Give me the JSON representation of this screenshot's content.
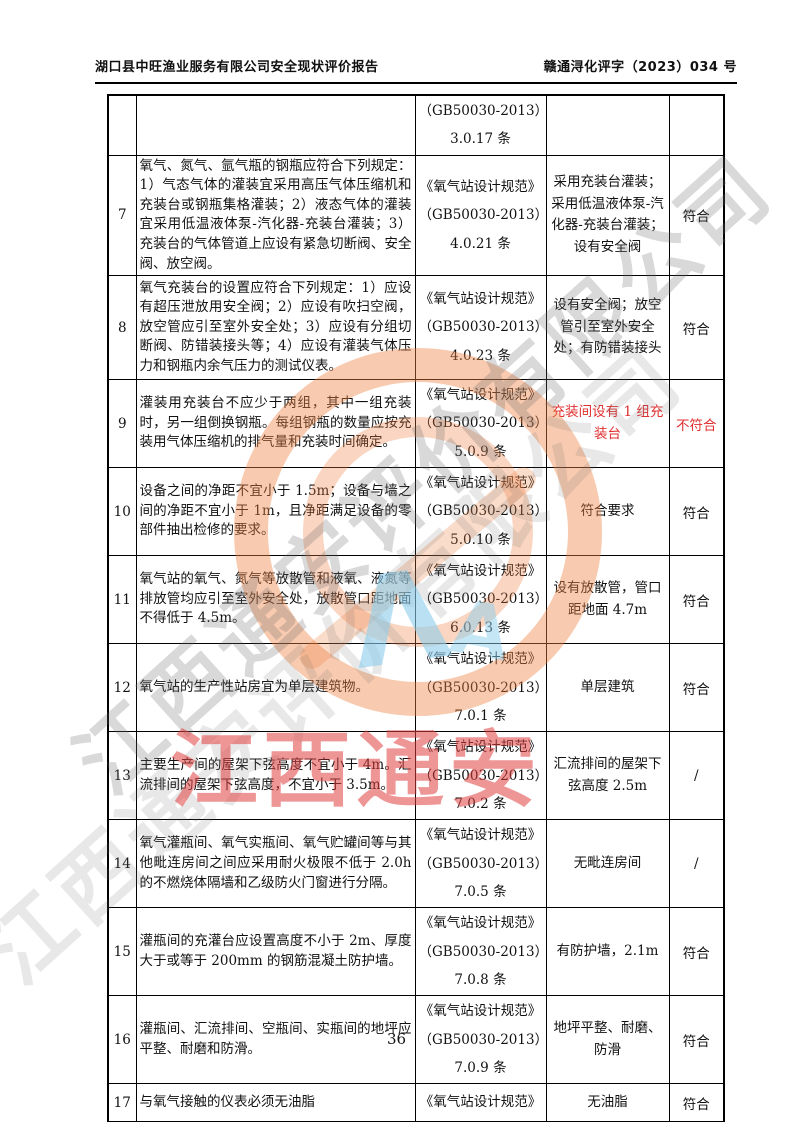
{
  "page": {
    "title_left": "湖口县中旺渔业服务有限公司安全现状评价报告",
    "title_right": "赣通浔化评字（2023）034 号",
    "page_number": "36"
  },
  "watermark": {
    "red_text": "江西通安",
    "gray_text": "江西通安评价有限公司",
    "blue_glyph1": "Λ",
    "blue_glyph2": "A",
    "colors": {
      "stamp_orange": "#EE8040",
      "red": "#E04040",
      "gray": "#6E6E6E",
      "blue": "#8CCDEB",
      "highlight_red": "#E03030"
    }
  },
  "table": {
    "rows": [
      {
        "no": "",
        "content": "",
        "standard": [
          "（GB50030-2013）",
          "3.0.17 条"
        ],
        "actual": "",
        "conclusion": "",
        "status": "none"
      },
      {
        "no": "7",
        "content": "氧气、氮气、氩气瓶的钢瓶应符合下列规定：1）气态气体的灌装宜采用高压气体压缩机和充装台或钢瓶集格灌装；2）液态气体的灌装宜采用低温液体泵-汽化器-充装台灌装；3）充装台的气体管道上应设有紧急切断阀、安全阀、放空阀。",
        "standard": [
          "《氧气站设计规范》",
          "（GB50030-2013）",
          "4.0.21 条"
        ],
        "actual": "采用充装台灌装；采用低温液体泵-汽化器-充装台灌装；设有安全阀",
        "conclusion": "符合",
        "status": "pass"
      },
      {
        "no": "8",
        "content": "氧气充装台的设置应符合下列规定：1）应设有超压泄放用安全阀；2）应设有吹扫空阀，放空管应引至室外安全处；3）应设有分组切断阀、防错装接头等；4）应设有灌装气体压力和钢瓶内余气压力的测试仪表。",
        "standard": [
          "《氧气站设计规范》",
          "（GB50030-2013）",
          "4.0.23 条"
        ],
        "actual": "设有安全阀；放空管引至室外安全处；有防错装接头",
        "conclusion": "符合",
        "status": "pass"
      },
      {
        "no": "9",
        "content": "灌装用充装台不应少于两组，其中一组充装时，另一组倒换钢瓶。每组钢瓶的数量应按充装用气体压缩机的排气量和充装时间确定。",
        "standard": [
          "《氧气站设计规范》",
          "（GB50030-2013）",
          "5.0.9 条"
        ],
        "actual": "充装间设有 1 组充装台",
        "conclusion": "不符合",
        "status": "fail"
      },
      {
        "no": "10",
        "content": "设备之间的净距不宜小于 1.5m；设备与墙之间的净距不宜小于 1m，且净距满足设备的零部件抽出检修的要求。",
        "standard": [
          "《氧气站设计规范》",
          "（GB50030-2013）",
          "5.0.10 条"
        ],
        "actual": "符合要求",
        "conclusion": "符合",
        "status": "pass"
      },
      {
        "no": "11",
        "content": "氧气站的氧气、氮气等放散管和液氧、液氮等排放管均应引至室外安全处，放散管口距地面不得低于 4.5m。",
        "standard": [
          "《氧气站设计规范》",
          "（GB50030-2013）",
          "6.0.13 条"
        ],
        "actual": "设有放散管，管口距地面 4.7m",
        "conclusion": "符合",
        "status": "pass"
      },
      {
        "no": "12",
        "content": "氧气站的生产性站房宜为单层建筑物。",
        "standard": [
          "《氧气站设计规范》",
          "（GB50030-2013）",
          "7.0.1 条"
        ],
        "actual": "单层建筑",
        "conclusion": "符合",
        "status": "pass"
      },
      {
        "no": "13",
        "content": "主要生产间的屋架下弦高度不宜小于 4m。汇流排间的屋架下弦高度，不宜小于 3.5m。",
        "standard": [
          "《氧气站设计规范》",
          "（GB50030-2013）",
          "7.0.2 条"
        ],
        "actual": "汇流排间的屋架下弦高度 2.5m",
        "conclusion": "/",
        "status": "na"
      },
      {
        "no": "14",
        "content": "氧气灌瓶间、氧气实瓶间、氧气贮罐间等与其他毗连房间之间应采用耐火极限不低于 2.0h 的不燃烧体隔墙和乙级防火门窗进行分隔。",
        "standard": [
          "《氧气站设计规范》",
          "（GB50030-2013）",
          "7.0.5 条"
        ],
        "actual": "无毗连房间",
        "conclusion": "/",
        "status": "na"
      },
      {
        "no": "15",
        "content": "灌瓶间的充灌台应设置高度不小于 2m、厚度大于或等于 200mm 的钢筋混凝土防护墙。",
        "standard": [
          "《氧气站设计规范》",
          "（GB50030-2013）",
          "7.0.8 条"
        ],
        "actual": "有防护墙，2.1m",
        "conclusion": "符合",
        "status": "pass"
      },
      {
        "no": "16",
        "content": "灌瓶间、汇流排间、空瓶间、实瓶间的地坪应平整、耐磨和防滑。",
        "standard": [
          "《氧气站设计规范》",
          "（GB50030-2013）",
          "7.0.9 条"
        ],
        "actual": "地坪平整、耐磨、防滑",
        "conclusion": "符合",
        "status": "pass"
      },
      {
        "no": "17",
        "content": "与氧气接触的仪表必须无油脂",
        "standard": [
          "《氧气站设计规范》"
        ],
        "actual": "无油脂",
        "conclusion": "符合",
        "status": "pass"
      }
    ]
  }
}
